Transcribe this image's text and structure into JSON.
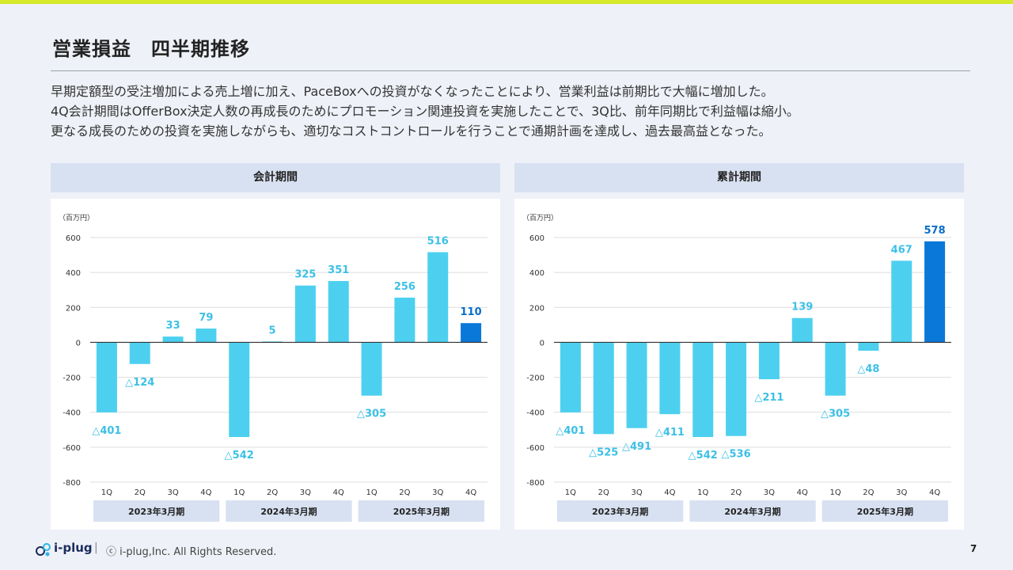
{
  "page": {
    "title": "営業損益　四半期推移",
    "description": [
      "早期定額型の受注増加による売上増に加え、PaceBoxへの投資がなくなったことにより、営業利益は前期比で大幅に増加した。",
      "4Q会計期間はOfferBox決定人数の再成長のためにプロモーション関連投資を実施したことで、3Q比、前年同期比で利益幅は縮小。",
      "更なる成長のための投資を実施しながらも、適切なコストコントロールを行うことで通期計画を達成し、過去最高益となった。"
    ]
  },
  "colors": {
    "bar": "#4dd0f0",
    "bar_highlight": "#0a78d8",
    "label": "#3cc0e6",
    "label_highlight": "#0a6ec8",
    "period_box": "#d8e1f1",
    "axis": "#333333",
    "grid": "#dddddd"
  },
  "chart_data": [
    {
      "type": "bar",
      "panel_title": "会計期間",
      "unit_label": "（百万円）",
      "categories": [
        "1Q",
        "2Q",
        "3Q",
        "4Q",
        "1Q",
        "2Q",
        "3Q",
        "4Q",
        "1Q",
        "2Q",
        "3Q",
        "4Q"
      ],
      "periods": [
        "2023年3月期",
        "2024年3月期",
        "2025年3月期"
      ],
      "values": [
        -401,
        -124,
        33,
        79,
        -542,
        5,
        325,
        351,
        -305,
        256,
        516,
        110
      ],
      "value_labels": [
        "△401",
        "△124",
        "33",
        "79",
        "△542",
        "5",
        "325",
        "351",
        "△305",
        "256",
        "516",
        "110"
      ],
      "highlight_index": 11,
      "ylim": [
        -800,
        600
      ],
      "yticks": [
        600,
        400,
        200,
        0,
        -200,
        -400,
        -600,
        -800
      ],
      "grid": true
    },
    {
      "type": "bar",
      "panel_title": "累計期間",
      "unit_label": "（百万円）",
      "categories": [
        "1Q",
        "2Q",
        "3Q",
        "4Q",
        "1Q",
        "2Q",
        "3Q",
        "4Q",
        "1Q",
        "2Q",
        "3Q",
        "4Q"
      ],
      "periods": [
        "2023年3月期",
        "2024年3月期",
        "2025年3月期"
      ],
      "values": [
        -401,
        -525,
        -491,
        -411,
        -542,
        -536,
        -211,
        139,
        -305,
        -48,
        467,
        578
      ],
      "value_labels": [
        "△401",
        "△525",
        "△491",
        "△411",
        "△542",
        "△536",
        "△211",
        "139",
        "△305",
        "△48",
        "467",
        "578"
      ],
      "highlight_index": 11,
      "ylim": [
        -800,
        600
      ],
      "yticks": [
        600,
        400,
        200,
        0,
        -200,
        -400,
        -600,
        -800
      ],
      "grid": true
    }
  ],
  "footer": {
    "brand": "i-plug",
    "separator": "|",
    "copyright": "ⓒ i-plug,Inc. All Rights Reserved.",
    "page_number": "7"
  }
}
